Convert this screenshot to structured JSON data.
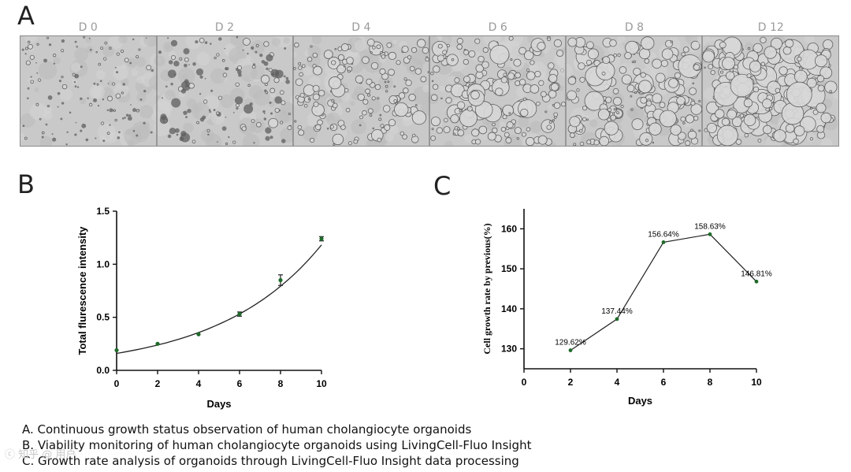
{
  "panels": {
    "a": {
      "letter": "A",
      "days": [
        "D 0",
        "D 2",
        "D 4",
        "D 6",
        "D 8",
        "D 12"
      ]
    },
    "b": {
      "letter": "B"
    },
    "c": {
      "letter": "C"
    }
  },
  "captions": [
    "A. Continuous growth status observation of human cholangiocyte organoids",
    "B. Viability monitoring of human cholangiocyte organoids using LivingCell-Fluo Insight",
    "C. Growth rate analysis of organoids through LivingCell-Fluo Insight data processing"
  ],
  "watermark": "ⓒ 知乎 @ 用户",
  "chart_data": [
    {
      "panel": "B",
      "type": "scatter",
      "xlabel": "Days",
      "ylabel": "Total flurescence intensity",
      "xlim": [
        0,
        10
      ],
      "ylim": [
        0,
        1.5
      ],
      "xticks": [
        0,
        2,
        4,
        6,
        8,
        10
      ],
      "yticks": [
        0.0,
        0.5,
        1.0,
        1.5
      ],
      "ytick_labels": [
        "0.0",
        "0.5",
        "1.0",
        "1.5"
      ],
      "marker_color": "#1e6b2a",
      "series": [
        {
          "x": [
            0,
            2,
            4,
            6,
            8,
            10
          ],
          "y": [
            0.19,
            0.25,
            0.34,
            0.53,
            0.85,
            1.24
          ],
          "error": [
            0.0,
            0.0,
            0.0,
            0.02,
            0.05,
            0.02
          ]
        }
      ],
      "fit": {
        "type": "exponential",
        "a": 0.16,
        "b": 0.2
      }
    },
    {
      "panel": "C",
      "type": "line",
      "xlabel": "Days",
      "ylabel": "Cell growth rate by previous(%)",
      "xlim": [
        0,
        10
      ],
      "ylim": [
        125,
        165
      ],
      "xticks": [
        0,
        2,
        4,
        6,
        8,
        10
      ],
      "yticks": [
        130,
        140,
        150,
        160
      ],
      "marker_color": "#1e6b2a",
      "series": [
        {
          "x": [
            2,
            4,
            6,
            8,
            10
          ],
          "y": [
            129.62,
            137.44,
            156.64,
            158.63,
            146.81
          ],
          "labels": [
            "129.62%",
            "137.44%",
            "156.64%",
            "158.63%",
            "146.81%"
          ]
        }
      ]
    }
  ]
}
